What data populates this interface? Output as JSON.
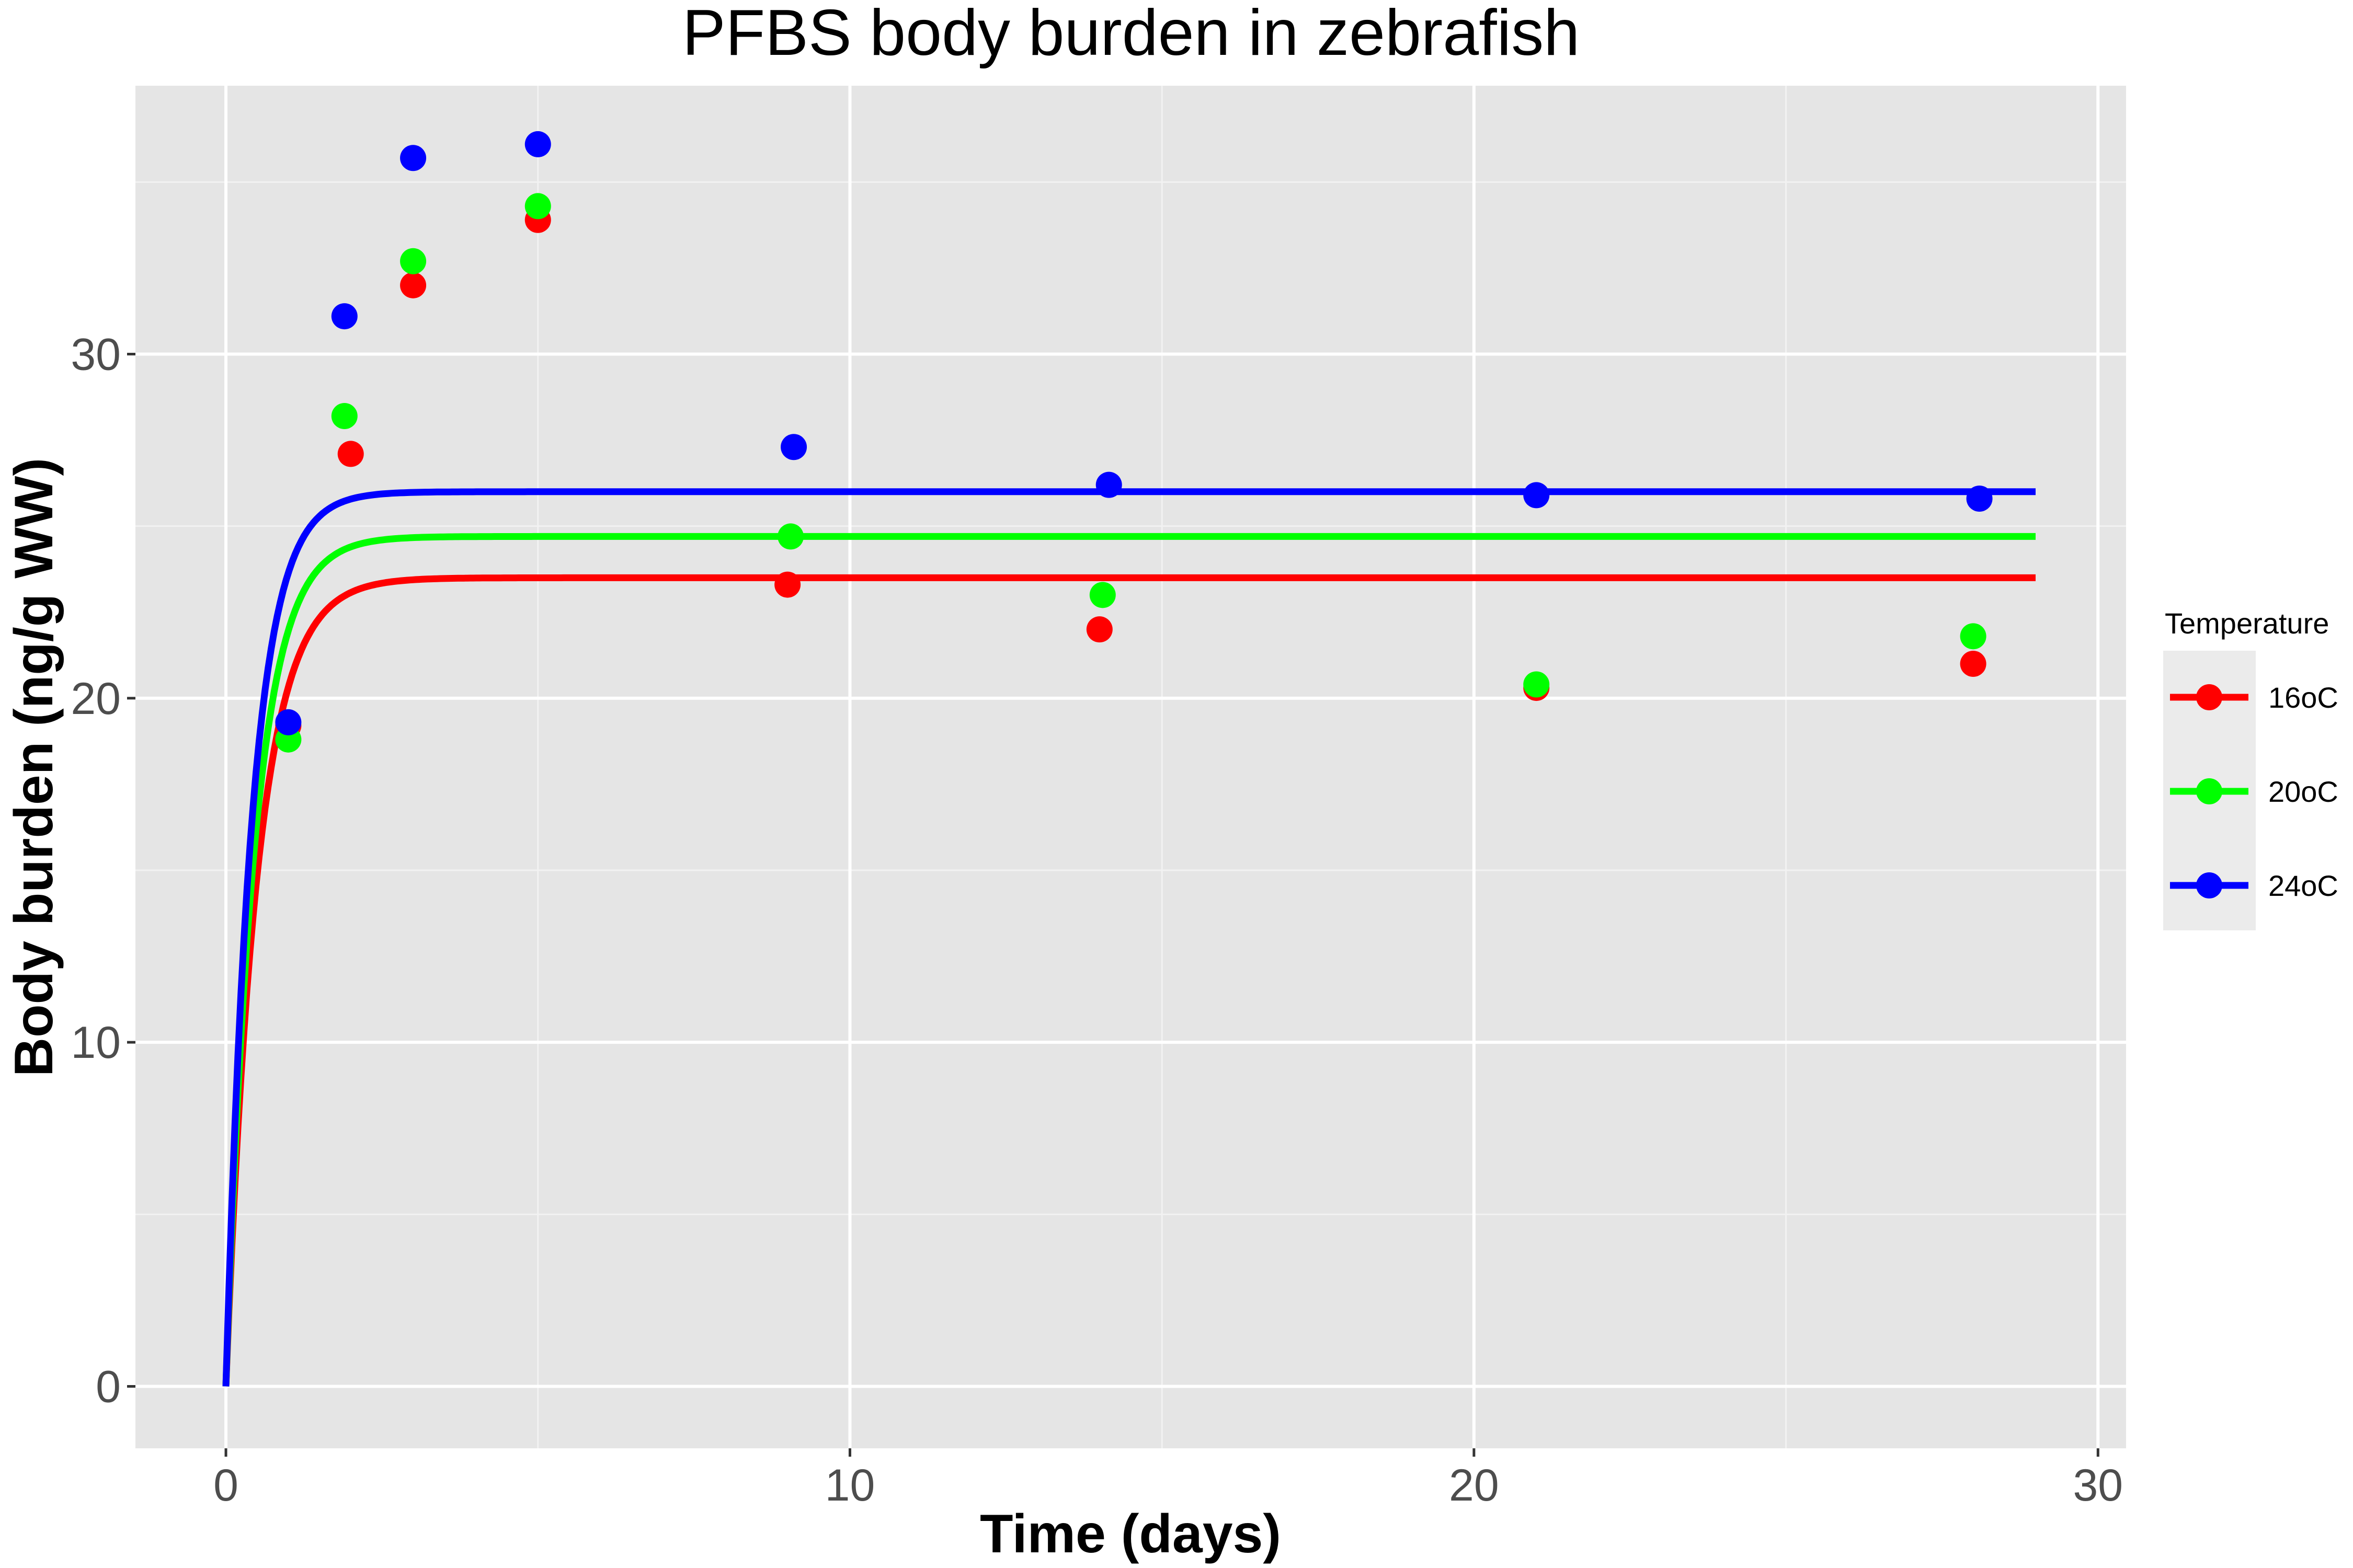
{
  "chart_data": {
    "type": "scatter",
    "title": "PFBS body burden in zebrafish",
    "xlabel": "Time (days)",
    "ylabel": "Body burden (ng/g WW)",
    "xlim": [
      -1.45,
      30.45
    ],
    "ylim": [
      -1.8,
      37.8
    ],
    "x_ticks": [
      0,
      10,
      20,
      30
    ],
    "y_ticks": [
      0,
      10,
      20,
      30
    ],
    "grid": true,
    "legend": {
      "title": "Temperature",
      "position": "right"
    },
    "series": [
      {
        "name": "16oC",
        "color": "#ff0000",
        "fit_curve": {
          "plateau": 23.5,
          "rate": 2.0,
          "x_end": 29
        },
        "points": [
          {
            "x": 1,
            "y": 19.2
          },
          {
            "x": 2,
            "y": 27.1
          },
          {
            "x": 3,
            "y": 32.0
          },
          {
            "x": 5,
            "y": 33.9
          },
          {
            "x": 9,
            "y": 23.3
          },
          {
            "x": 14,
            "y": 22.0
          },
          {
            "x": 21,
            "y": 20.3
          },
          {
            "x": 28,
            "y": 21.0
          }
        ]
      },
      {
        "name": "20oC",
        "color": "#00ff00",
        "fit_curve": {
          "plateau": 24.7,
          "rate": 2.2,
          "x_end": 29
        },
        "points": [
          {
            "x": 1,
            "y": 18.8
          },
          {
            "x": 1.9,
            "y": 28.2
          },
          {
            "x": 3,
            "y": 32.7
          },
          {
            "x": 5,
            "y": 34.3
          },
          {
            "x": 9.05,
            "y": 24.7
          },
          {
            "x": 14.05,
            "y": 23.0
          },
          {
            "x": 21,
            "y": 20.4
          },
          {
            "x": 28,
            "y": 21.8
          }
        ]
      },
      {
        "name": "24oC",
        "color": "#0000ff",
        "fit_curve": {
          "plateau": 26.0,
          "rate": 2.4,
          "x_end": 29
        },
        "points": [
          {
            "x": 1,
            "y": 19.3
          },
          {
            "x": 1.9,
            "y": 31.1
          },
          {
            "x": 3,
            "y": 35.7
          },
          {
            "x": 5,
            "y": 36.1
          },
          {
            "x": 9.1,
            "y": 27.3
          },
          {
            "x": 14.15,
            "y": 26.2
          },
          {
            "x": 21,
            "y": 25.9
          },
          {
            "x": 28.1,
            "y": 25.8
          }
        ]
      }
    ]
  }
}
